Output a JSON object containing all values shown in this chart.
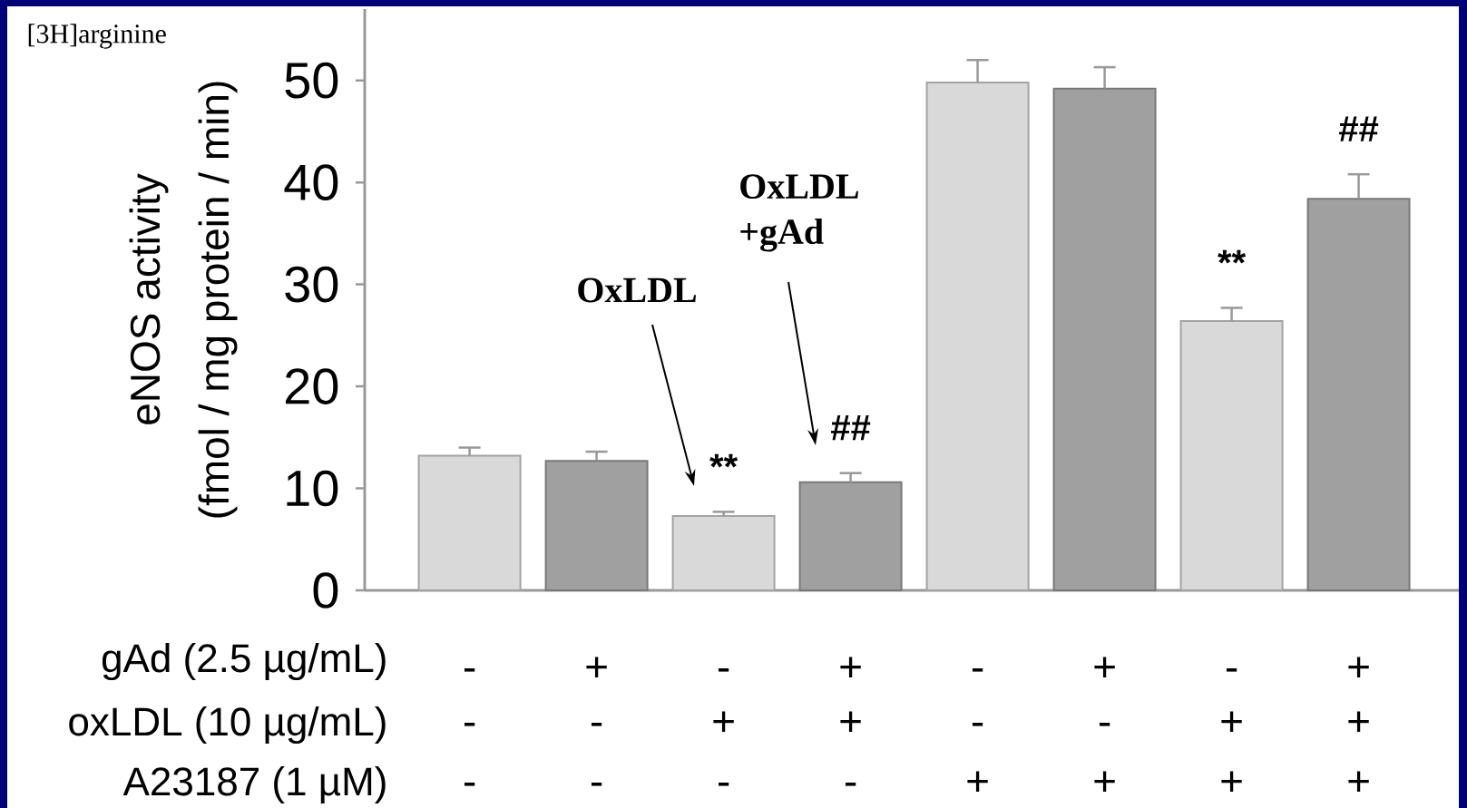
{
  "chart_data": {
    "type": "bar",
    "ylabel": "eNOS activity (fmol / mg protein / min)",
    "categories": [
      "-",
      "+",
      "-",
      "+",
      "-",
      "+",
      "-",
      "+"
    ],
    "values": [
      13.2,
      12.7,
      7.3,
      10.6,
      49.8,
      49.2,
      26.4,
      38.4
    ],
    "errors": [
      0.8,
      0.9,
      0.4,
      0.9,
      2.2,
      2.1,
      1.3,
      2.4
    ],
    "colors": [
      "#d9d9d9",
      "#a0a0a0",
      "#d9d9d9",
      "#a0a0a0",
      "#d9d9d9",
      "#a0a0a0",
      "#d9d9d9",
      "#a0a0a0"
    ],
    "ylim": [
      0,
      57
    ],
    "yticks": [
      0,
      10,
      20,
      30,
      40,
      50
    ],
    "annotations": [
      "[3H]arginine",
      "OxLDL",
      "OxLDL +gAd",
      "**",
      "##",
      "**",
      "##",
      "gAd (2.5 µg/mL)",
      "oxLDL (10 µg/mL)",
      "A23187 (1 µM)",
      "-",
      "-",
      "+",
      "+",
      "-",
      "-",
      "+",
      "+",
      "-",
      "-",
      "-",
      "-",
      "+",
      "+",
      "+",
      "+"
    ]
  }
}
